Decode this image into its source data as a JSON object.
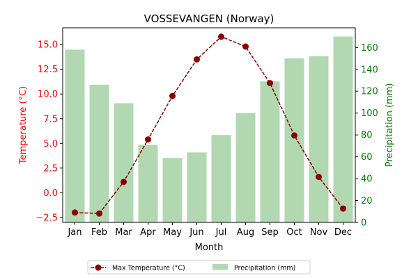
{
  "chart_data": {
    "type": "bar+line",
    "title": "VOSSEVANGEN (Norway)",
    "xlabel": "Month",
    "y_left_label": "Temperature (°C)",
    "y_right_label": "Precipitation (mm)",
    "categories": [
      "Jan",
      "Feb",
      "Mar",
      "Apr",
      "May",
      "Jun",
      "Jul",
      "Aug",
      "Sep",
      "Oct",
      "Nov",
      "Dec"
    ],
    "y_left_lim": [
      -3.0,
      16.7
    ],
    "y_right_lim": [
      0,
      178
    ],
    "y_left_ticks": [
      -2.5,
      0.0,
      2.5,
      5.0,
      7.5,
      10.0,
      12.5,
      15.0
    ],
    "y_left_tick_labels": [
      "−2.5",
      "0.0",
      "2.5",
      "5.0",
      "7.5",
      "10.0",
      "12.5",
      "15.0"
    ],
    "y_right_ticks": [
      0,
      20,
      40,
      60,
      80,
      100,
      120,
      140,
      160
    ],
    "y_right_tick_labels": [
      "0",
      "20",
      "40",
      "60",
      "80",
      "100",
      "120",
      "140",
      "160"
    ],
    "series": [
      {
        "name": "Precipitation (mm)",
        "kind": "bar",
        "axis": "right",
        "color": "#b2d8b2",
        "values": [
          158,
          126,
          109,
          71,
          59,
          64,
          80,
          100,
          129,
          150,
          152,
          170
        ]
      },
      {
        "name": "Max Temperature (°C)",
        "kind": "line",
        "axis": "left",
        "color": "#8b0000",
        "values": [
          -2.0,
          -2.1,
          1.1,
          5.4,
          9.8,
          13.5,
          15.8,
          14.8,
          11.1,
          5.8,
          1.6,
          -1.6
        ]
      }
    ],
    "grid": false,
    "legend_position": "bottom-center"
  },
  "colors": {
    "left_axis": "#ff0000",
    "right_axis": "#008000",
    "text": "#000000"
  }
}
